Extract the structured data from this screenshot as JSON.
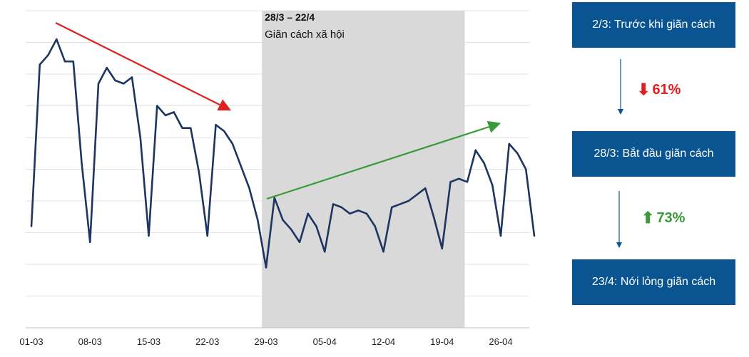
{
  "chart_data": {
    "type": "line",
    "x_tick_labels": [
      "01-03",
      "08-03",
      "15-03",
      "22-03",
      "29-03",
      "05-04",
      "12-04",
      "19-04",
      "26-04"
    ],
    "ylim": [
      0,
      10
    ],
    "grid": "horizontal",
    "series": [
      {
        "values": [
          3.2,
          8.3,
          8.6,
          9.1,
          8.4,
          8.4,
          5.2,
          2.7,
          7.7,
          8.2,
          7.8,
          7.7,
          7.9,
          6.0,
          2.9,
          7.0,
          6.7,
          6.8,
          6.3,
          6.3,
          4.9,
          2.9,
          6.4,
          6.2,
          5.8,
          5.1,
          4.4,
          3.4,
          1.9,
          4.1,
          3.4,
          3.1,
          2.7,
          3.6,
          3.2,
          2.4,
          3.9,
          3.8,
          3.6,
          3.7,
          3.6,
          3.2,
          2.4,
          3.8,
          3.9,
          4.0,
          4.2,
          4.4,
          3.5,
          2.5,
          4.6,
          4.7,
          4.6,
          5.6,
          5.2,
          4.5,
          2.9,
          5.8,
          5.5,
          5.0,
          2.9
        ],
        "color": "#1e3461"
      }
    ],
    "shaded_period": {
      "from": "29-03",
      "to": "22-04",
      "title": "28/3 – 22/4",
      "subtitle": "Giãn cách xã hội"
    },
    "trend_arrows": [
      {
        "direction": "down",
        "color": "#e02020"
      },
      {
        "direction": "up",
        "color": "#3a9a3a"
      }
    ]
  },
  "flow": {
    "stages": [
      "2/3: Trước khi giãn cách",
      "28/3: Bắt đầu giãn cách",
      "23/4: Nới lỏng giãn cách"
    ],
    "changes": [
      {
        "glyph": "⬇",
        "text": "61%",
        "color": "#e02020"
      },
      {
        "glyph": "⬆",
        "text": "73%",
        "color": "#3a9a3a"
      }
    ],
    "box_color": "#0a5591"
  }
}
